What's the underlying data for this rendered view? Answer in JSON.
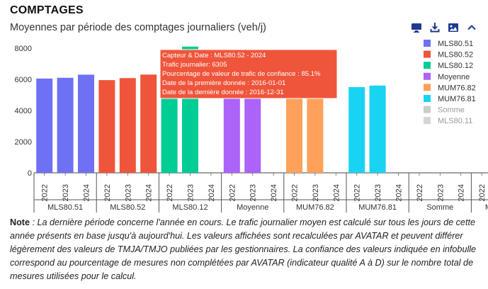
{
  "header": {
    "title": "COMPTAGES",
    "subtitle": "Moyennes par période des comptages journaliers (veh/j)"
  },
  "toolbar": {
    "icons": [
      "monitor-icon",
      "download-icon",
      "image-icon",
      "chevron-up-icon"
    ],
    "color": "#1f3a93"
  },
  "chart_data": {
    "type": "bar",
    "ylim": [
      0,
      8000
    ],
    "yticks": [
      0,
      2000,
      4000,
      6000,
      8000
    ],
    "years": [
      "2022",
      "2023",
      "2024"
    ],
    "groups": [
      {
        "name": "MLS80.51",
        "color": "#6f71f5",
        "values": [
          6050,
          6100,
          6300
        ],
        "visible": true
      },
      {
        "name": "MLS80.52",
        "color": "#ef553b",
        "values": [
          5950,
          6080,
          6305
        ],
        "visible": true
      },
      {
        "name": "MLS80.12",
        "color": "#00cc96",
        "values": [
          5600,
          8100,
          null
        ],
        "visible": true
      },
      {
        "name": "Moyenne",
        "color": "#ab63fa",
        "values": [
          5800,
          5850,
          null
        ],
        "visible": true
      },
      {
        "name": "MUM76.82",
        "color": "#ffa15a",
        "values": [
          5600,
          5700,
          null
        ],
        "visible": true
      },
      {
        "name": "MUM76.81",
        "color": "#19d3f3",
        "values": [
          5500,
          5600,
          null
        ],
        "visible": true
      },
      {
        "name": "Somme",
        "color": "#aaaaaa",
        "values": [
          null,
          null,
          null
        ],
        "visible": false
      },
      {
        "name": "MLS80.11",
        "color": "#bbbbbb",
        "values": [
          null,
          null,
          null
        ],
        "visible": false
      }
    ],
    "tooltip": {
      "lines": [
        "Capteur & Date : MLS80.52 - 2024",
        "Trafic journalier: 6305",
        "Pourcentage de valeur de trafic de confiance : 85.1%",
        "Date de la première donnée : 2016-01-01",
        "Date de la dernière donnée : 2016-12-31"
      ],
      "color": "#ef553b"
    }
  },
  "note": {
    "label": "Note",
    "text": " : La dernière période concerne l'année en cours. Le trafic journalier moyen est calculé sur tous les jours de cette année présents en base jusqu'à aujourd'hui. Les valeurs affichées sont recalculées par AVATAR et peuvent différer légèrement des valeurs de TMJA/TMJO publiées par les gestionnaires. La confiance des valeurs indiquée en infobulle correspond au pourcentage de mesures non complétées par AVATAR (indicateur qualité A à D) sur le nombre total de mesures utilisées pour le calcul."
  }
}
